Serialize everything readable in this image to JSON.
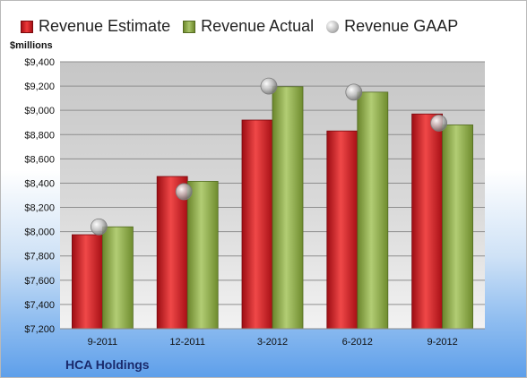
{
  "units_label": "$millions",
  "company": "HCA Holdings",
  "colors": {
    "estimate": "#d4161f",
    "actual": "#8fb04a",
    "gaap": "#b5b5b5"
  },
  "chart_data": {
    "type": "bar",
    "categories": [
      "9-2011",
      "12-2011",
      "3-2012",
      "6-2012",
      "9-2012"
    ],
    "series": [
      {
        "name": "Revenue Estimate",
        "values": [
          7975,
          8455,
          8920,
          8830,
          8970
        ]
      },
      {
        "name": "Revenue Actual",
        "values": [
          8040,
          8415,
          9195,
          9150,
          8880
        ]
      },
      {
        "name": "Revenue GAAP",
        "values": [
          8040,
          8330,
          9200,
          9150,
          8895
        ]
      }
    ],
    "ylim": [
      7200,
      9400
    ],
    "yticks": [
      "$7,200",
      "$7,400",
      "$7,600",
      "$7,800",
      "$8,000",
      "$8,200",
      "$8,400",
      "$8,600",
      "$8,800",
      "$9,000",
      "$9,200",
      "$9,400"
    ],
    "ytick_values": [
      7200,
      7400,
      7600,
      7800,
      8000,
      8200,
      8400,
      8600,
      8800,
      9000,
      9200,
      9400
    ],
    "grid": true,
    "legend_position": "top"
  }
}
